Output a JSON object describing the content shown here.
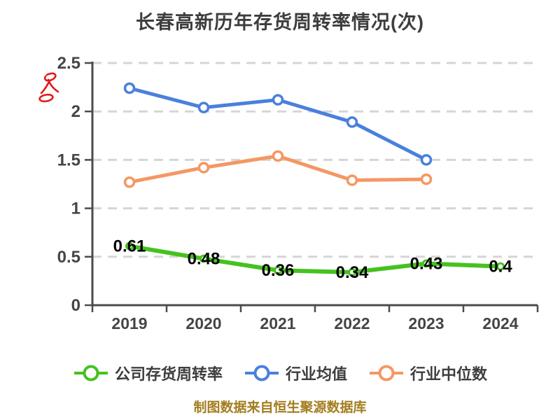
{
  "title": "长春高新历年存货周转率情况(次)",
  "footer": {
    "text": "制图数据来自恒生聚源数据库",
    "color": "#a37d1e"
  },
  "watermark": {
    "color": "#e11b1b"
  },
  "legend": {
    "items": [
      {
        "label": "公司存货周转率",
        "color": "#45c21e"
      },
      {
        "label": "行业均值",
        "color": "#4a80dd"
      },
      {
        "label": "行业中位数",
        "color": "#f59763"
      }
    ]
  },
  "chart_data": {
    "type": "line",
    "title": "长春高新历年存货周转率情况(次)",
    "categories": [
      "2019",
      "2020",
      "2021",
      "2022",
      "2023",
      "2024"
    ],
    "series": [
      {
        "name": "公司存货周转率",
        "color": "#45c21e",
        "values": [
          0.61,
          0.48,
          0.36,
          0.34,
          0.43,
          0.4
        ],
        "labels": [
          "0.61",
          "0.48",
          "0.36",
          "0.34",
          "0.43",
          "0.4"
        ],
        "show_labels": true,
        "line_width": 6,
        "marker_radius": 4.5
      },
      {
        "name": "行业均值",
        "color": "#4a80dd",
        "values": [
          2.24,
          2.04,
          2.12,
          1.89,
          1.5
        ],
        "show_labels": false,
        "line_width": 5,
        "marker_radius": 6.5
      },
      {
        "name": "行业中位数",
        "color": "#f59763",
        "values": [
          1.27,
          1.42,
          1.54,
          1.29,
          1.3
        ],
        "show_labels": false,
        "line_width": 5,
        "marker_radius": 6.5
      }
    ],
    "ylim": [
      0,
      2.5
    ],
    "yticks": [
      {
        "value": 0,
        "label": "0"
      },
      {
        "value": 0.5,
        "label": "0.5"
      },
      {
        "value": 1,
        "label": "1"
      },
      {
        "value": 1.5,
        "label": "1.5"
      },
      {
        "value": 2,
        "label": "2"
      },
      {
        "value": 2.5,
        "label": "2.5"
      }
    ],
    "grid": "horizontal dashed",
    "legend_position": "bottom",
    "axis_color": "#4b4b4b",
    "grid_color": "#d5d5d5"
  }
}
